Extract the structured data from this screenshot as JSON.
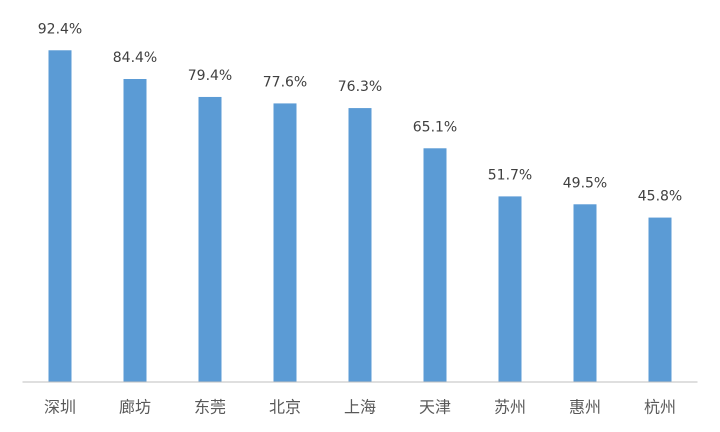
{
  "chart_data": {
    "type": "bar",
    "categories": [
      "深圳",
      "廊坊",
      "东莞",
      "北京",
      "上海",
      "天津",
      "苏州",
      "惠州",
      "杭州"
    ],
    "values": [
      92.4,
      84.4,
      79.4,
      77.6,
      76.3,
      65.1,
      51.7,
      49.5,
      45.8
    ],
    "value_labels": [
      "92.4%",
      "84.4%",
      "79.4%",
      "77.6%",
      "76.3%",
      "65.1%",
      "51.7%",
      "49.5%",
      "45.8%"
    ],
    "color": "#5b9bd5",
    "ylim": [
      0,
      100
    ]
  }
}
